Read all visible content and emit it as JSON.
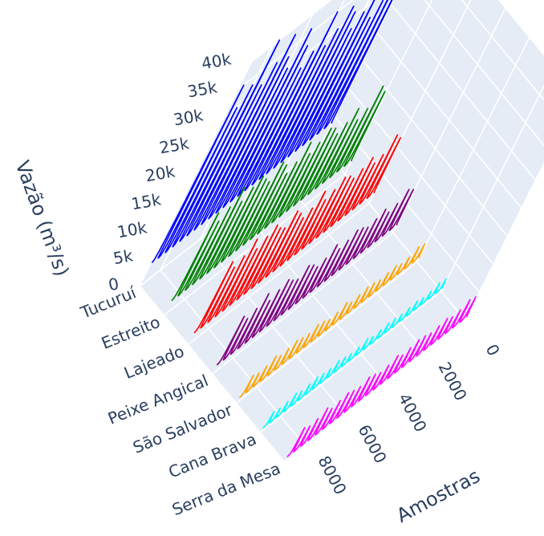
{
  "chart_data": {
    "type": "line",
    "dimension": "3d",
    "x_axis": {
      "label": "Amostras",
      "ticks": [
        0,
        2000,
        4000,
        6000,
        8000
      ],
      "range": [
        0,
        9000
      ]
    },
    "y_axis": {
      "label": "",
      "categories": [
        "Tucuruí",
        "Estreito",
        "Lajeado",
        "Peixe Angical",
        "São Salvador",
        "Cana Brava",
        "Serra da Mesa"
      ]
    },
    "z_axis": {
      "label": "Vazão (m³/s)",
      "ticks": [
        "0",
        "5k",
        "10k",
        "15k",
        "20k",
        "25k",
        "30k",
        "35k",
        "40k"
      ],
      "tick_values": [
        0,
        5000,
        10000,
        15000,
        20000,
        25000,
        30000,
        35000,
        40000
      ],
      "range": [
        0,
        40000
      ]
    },
    "grid": true,
    "legend": "none",
    "series": [
      {
        "category": "Tucuruí",
        "color": "#0000ff",
        "base_flow": 4000,
        "annual_peak_flows": [
          30000,
          34000,
          28000,
          26000,
          32000,
          29000,
          27000,
          31000,
          33000,
          30000,
          28000,
          35000,
          29000,
          27000,
          32000,
          36000,
          30000,
          33000,
          38000,
          34000,
          31000,
          40000,
          33000,
          30000,
          35000
        ]
      },
      {
        "category": "Estreito",
        "color": "#008000",
        "base_flow": 2500,
        "annual_peak_flows": [
          15000,
          17000,
          14000,
          13000,
          16000,
          14500,
          13500,
          15500,
          16500,
          15000,
          14000,
          17000,
          14500,
          13500,
          16000,
          17500,
          15000,
          16500,
          18000,
          17000,
          15500,
          19000,
          16500,
          15000,
          17500
        ]
      },
      {
        "category": "Lajeado",
        "color": "#ff0000",
        "base_flow": 2000,
        "annual_peak_flows": [
          12000,
          13500,
          11000,
          10500,
          12500,
          11500,
          10800,
          12200,
          13000,
          11800,
          11000,
          13500,
          11500,
          10800,
          12600,
          14000,
          12000,
          13000,
          14500,
          13500,
          12300,
          15000,
          13000,
          12000,
          14000
        ]
      },
      {
        "category": "Peixe Angical",
        "color": "#800080",
        "base_flow": 1500,
        "annual_peak_flows": [
          8000,
          9000,
          7500,
          7000,
          8500,
          7800,
          7300,
          8200,
          8800,
          8000,
          7500,
          9200,
          7800,
          7300,
          8600,
          9500,
          8100,
          8900,
          10000,
          9200,
          8300,
          10500,
          8900,
          8100,
          9500
        ]
      },
      {
        "category": "São Salvador",
        "color": "#ffa500",
        "base_flow": 900,
        "annual_peak_flows": [
          3500,
          4000,
          3200,
          3000,
          3700,
          3400,
          3100,
          3600,
          3900,
          3500,
          3200,
          4100,
          3400,
          3100,
          3800,
          4200,
          3600,
          3900,
          4400,
          4000,
          3700,
          4600,
          3900,
          3600,
          4200
        ]
      },
      {
        "category": "Cana Brava",
        "color": "#00ffff",
        "base_flow": 700,
        "annual_peak_flows": [
          2500,
          2800,
          2300,
          2200,
          2600,
          2400,
          2250,
          2550,
          2700,
          2500,
          2300,
          2900,
          2400,
          2250,
          2650,
          3000,
          2550,
          2750,
          3100,
          2850,
          2600,
          3200,
          2750,
          2550,
          2950
        ]
      },
      {
        "category": "Serra da Mesa",
        "color": "#ff00ff",
        "base_flow": 800,
        "annual_peak_flows": [
          4500,
          5000,
          4200,
          4000,
          4700,
          4400,
          4100,
          4600,
          4900,
          4500,
          4200,
          5100,
          4400,
          4100,
          4800,
          5300,
          4600,
          4900,
          5500,
          5100,
          4700,
          5800,
          4900,
          4600,
          5300
        ]
      }
    ]
  }
}
